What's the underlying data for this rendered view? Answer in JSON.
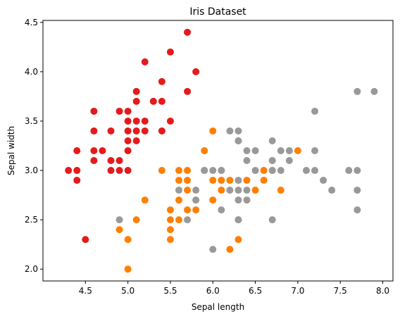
{
  "chart_data": {
    "type": "scatter",
    "title": "Iris Dataset",
    "xlabel": "Sepal length",
    "ylabel": "Sepal width",
    "xlim": [
      4.0,
      8.12
    ],
    "ylim": [
      1.88,
      4.52
    ],
    "xticks": [
      "4.5",
      "5.0",
      "5.5",
      "6.0",
      "6.5",
      "7.0",
      "7.5",
      "8.0"
    ],
    "yticks": [
      "2.0",
      "2.5",
      "3.0",
      "3.5",
      "4.0",
      "4.5"
    ],
    "grid": false,
    "series": [
      {
        "color": "#e41a1c",
        "points": [
          [
            4.3,
            3.0
          ],
          [
            4.4,
            3.0
          ],
          [
            4.4,
            3.2
          ],
          [
            4.4,
            2.9
          ],
          [
            4.5,
            2.3
          ],
          [
            4.6,
            3.6
          ],
          [
            4.6,
            3.4
          ],
          [
            4.6,
            3.2
          ],
          [
            4.6,
            3.1
          ],
          [
            4.7,
            3.2
          ],
          [
            4.8,
            3.4
          ],
          [
            4.8,
            3.1
          ],
          [
            4.8,
            3.0
          ],
          [
            4.9,
            3.6
          ],
          [
            4.9,
            3.1
          ],
          [
            4.9,
            3.0
          ],
          [
            5.0,
            3.6
          ],
          [
            5.0,
            3.5
          ],
          [
            5.0,
            3.4
          ],
          [
            5.0,
            3.3
          ],
          [
            5.0,
            3.2
          ],
          [
            5.0,
            3.0
          ],
          [
            5.1,
            3.8
          ],
          [
            5.1,
            3.7
          ],
          [
            5.1,
            3.5
          ],
          [
            5.1,
            3.4
          ],
          [
            5.1,
            3.3
          ],
          [
            5.2,
            4.1
          ],
          [
            5.2,
            3.5
          ],
          [
            5.2,
            3.4
          ],
          [
            5.3,
            3.7
          ],
          [
            5.4,
            3.9
          ],
          [
            5.4,
            3.7
          ],
          [
            5.4,
            3.4
          ],
          [
            5.5,
            4.2
          ],
          [
            5.5,
            3.5
          ],
          [
            5.7,
            4.4
          ],
          [
            5.7,
            3.8
          ],
          [
            5.8,
            4.0
          ]
        ]
      },
      {
        "color": "#ff7f00",
        "points": [
          [
            4.9,
            2.4
          ],
          [
            5.0,
            2.0
          ],
          [
            5.0,
            2.3
          ],
          [
            5.1,
            2.5
          ],
          [
            5.2,
            2.7
          ],
          [
            5.4,
            3.0
          ],
          [
            5.5,
            2.3
          ],
          [
            5.5,
            2.4
          ],
          [
            5.5,
            2.5
          ],
          [
            5.5,
            2.6
          ],
          [
            5.6,
            3.0
          ],
          [
            5.6,
            2.9
          ],
          [
            5.6,
            2.7
          ],
          [
            5.6,
            2.5
          ],
          [
            5.7,
            3.0
          ],
          [
            5.7,
            2.9
          ],
          [
            5.7,
            2.8
          ],
          [
            5.7,
            2.6
          ],
          [
            5.8,
            2.7
          ],
          [
            5.8,
            2.6
          ],
          [
            5.9,
            3.2
          ],
          [
            5.9,
            3.0
          ],
          [
            6.0,
            3.4
          ],
          [
            6.0,
            2.9
          ],
          [
            6.0,
            2.7
          ],
          [
            6.1,
            3.0
          ],
          [
            6.1,
            2.9
          ],
          [
            6.1,
            2.8
          ],
          [
            6.2,
            2.9
          ],
          [
            6.2,
            2.2
          ],
          [
            6.3,
            3.3
          ],
          [
            6.3,
            2.5
          ],
          [
            6.3,
            2.3
          ],
          [
            6.4,
            2.9
          ],
          [
            6.5,
            2.8
          ],
          [
            6.6,
            3.0
          ],
          [
            6.6,
            2.9
          ],
          [
            6.7,
            3.1
          ],
          [
            6.7,
            3.0
          ],
          [
            6.8,
            2.8
          ],
          [
            7.0,
            3.2
          ]
        ]
      },
      {
        "color": "#999999",
        "points": [
          [
            4.9,
            2.5
          ],
          [
            5.6,
            2.8
          ],
          [
            5.7,
            2.5
          ],
          [
            5.8,
            2.8
          ],
          [
            5.8,
            2.7
          ],
          [
            5.9,
            3.0
          ],
          [
            6.0,
            3.0
          ],
          [
            6.0,
            2.2
          ],
          [
            6.1,
            3.0
          ],
          [
            6.1,
            2.6
          ],
          [
            6.2,
            3.4
          ],
          [
            6.2,
            2.8
          ],
          [
            6.3,
            3.4
          ],
          [
            6.3,
            3.3
          ],
          [
            6.3,
            2.9
          ],
          [
            6.3,
            2.8
          ],
          [
            6.3,
            2.7
          ],
          [
            6.3,
            2.5
          ],
          [
            6.4,
            3.2
          ],
          [
            6.4,
            3.1
          ],
          [
            6.4,
            2.8
          ],
          [
            6.4,
            2.7
          ],
          [
            6.5,
            3.2
          ],
          [
            6.5,
            3.0
          ],
          [
            6.7,
            3.3
          ],
          [
            6.7,
            3.1
          ],
          [
            6.7,
            3.0
          ],
          [
            6.7,
            2.5
          ],
          [
            6.8,
            3.2
          ],
          [
            6.8,
            3.0
          ],
          [
            6.9,
            3.2
          ],
          [
            6.9,
            3.1
          ],
          [
            7.1,
            3.0
          ],
          [
            7.2,
            3.6
          ],
          [
            7.2,
            3.2
          ],
          [
            7.2,
            3.0
          ],
          [
            7.3,
            2.9
          ],
          [
            7.4,
            2.8
          ],
          [
            7.6,
            3.0
          ],
          [
            7.7,
            3.8
          ],
          [
            7.7,
            3.0
          ],
          [
            7.7,
            2.8
          ],
          [
            7.7,
            2.6
          ],
          [
            7.9,
            3.8
          ]
        ]
      }
    ]
  }
}
